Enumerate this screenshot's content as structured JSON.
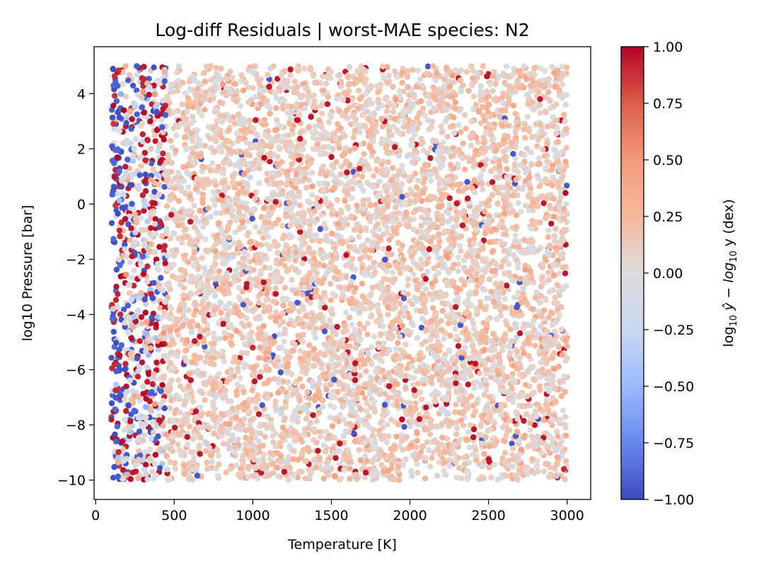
{
  "chart_data": {
    "type": "scatter",
    "title": "Log-diff Residuals | worst-MAE species: N2",
    "xlabel": "Temperature [K]",
    "ylabel": "log10 Pressure [bar]",
    "xlim": [
      -10,
      3150
    ],
    "ylim": [
      -10.7,
      5.7
    ],
    "x_ticks": [
      0,
      500,
      1000,
      1500,
      2000,
      2500,
      3000
    ],
    "x_tick_labels": [
      "0",
      "500",
      "1000",
      "1500",
      "2000",
      "2500",
      "3000"
    ],
    "y_ticks": [
      -10,
      -8,
      -6,
      -4,
      -2,
      0,
      2,
      4
    ],
    "y_tick_labels": [
      "−10",
      "−8",
      "−6",
      "−4",
      "−2",
      "0",
      "2",
      "4"
    ],
    "grid": false,
    "colormap": "coolwarm",
    "colorbar": {
      "label_prefix": "log",
      "label_sub": "10",
      "label_mid": " ŷ − log",
      "label_sub2": "10",
      "label_suffix": " y (dex)",
      "vmin": -1.0,
      "vmax": 1.0,
      "ticks": [
        -1.0,
        -0.75,
        -0.5,
        -0.25,
        0.0,
        0.25,
        0.5,
        0.75,
        1.0
      ],
      "tick_labels": [
        "−1.00",
        "−0.75",
        "−0.50",
        "−0.25",
        "0.00",
        "0.25",
        "0.50",
        "0.75",
        "1.00"
      ],
      "colors": [
        "#3b4cc0",
        "#6788ee",
        "#9abbff",
        "#c9d7f0",
        "#dddcdc",
        "#f7b89c",
        "#f49a7b",
        "#dc5d4a",
        "#b40426"
      ]
    },
    "data_x_range": [
      100,
      3000
    ],
    "data_y_range": [
      -10,
      5
    ],
    "point_count": 7000,
    "sample_points": [
      {
        "x": 110,
        "y": 4.9,
        "c": -1.0
      },
      {
        "x": 120,
        "y": 0.6,
        "c": -0.95
      },
      {
        "x": 180,
        "y": 3.4,
        "c": 1.0
      },
      {
        "x": 170,
        "y": -8.6,
        "c": 1.0
      },
      {
        "x": 300,
        "y": -1.9,
        "c": -0.9
      },
      {
        "x": 600,
        "y": 0.3,
        "c": 0.3
      },
      {
        "x": 1000,
        "y": -5.2,
        "c": 0.9
      },
      {
        "x": 1500,
        "y": -2.1,
        "c": 0.2
      },
      {
        "x": 1950,
        "y": -7.8,
        "c": 1.0
      },
      {
        "x": 2500,
        "y": 3.9,
        "c": 0.3
      },
      {
        "x": 2990,
        "y": 0.4,
        "c": 1.0
      },
      {
        "x": 2980,
        "y": -9.6,
        "c": 0.9
      }
    ]
  }
}
